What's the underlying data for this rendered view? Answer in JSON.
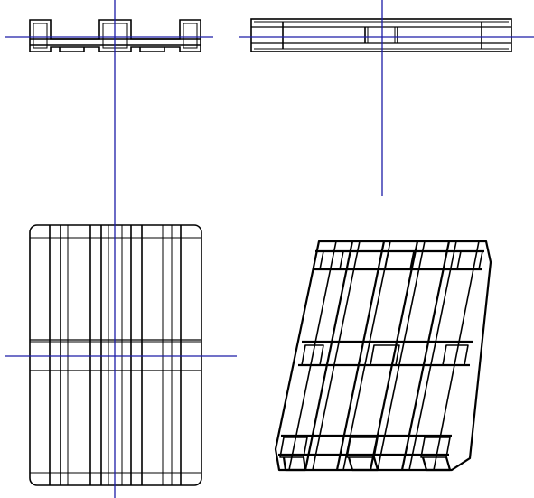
{
  "app": {
    "canvas": {
      "background": "#ffffff",
      "line_color": "#000000",
      "axis_color": "#1c1ca8"
    },
    "views": [
      {
        "id": "front",
        "object": "pallet"
      },
      {
        "id": "side",
        "object": "pallet"
      },
      {
        "id": "top",
        "object": "pallet"
      },
      {
        "id": "isometric",
        "object": "pallet"
      }
    ]
  }
}
